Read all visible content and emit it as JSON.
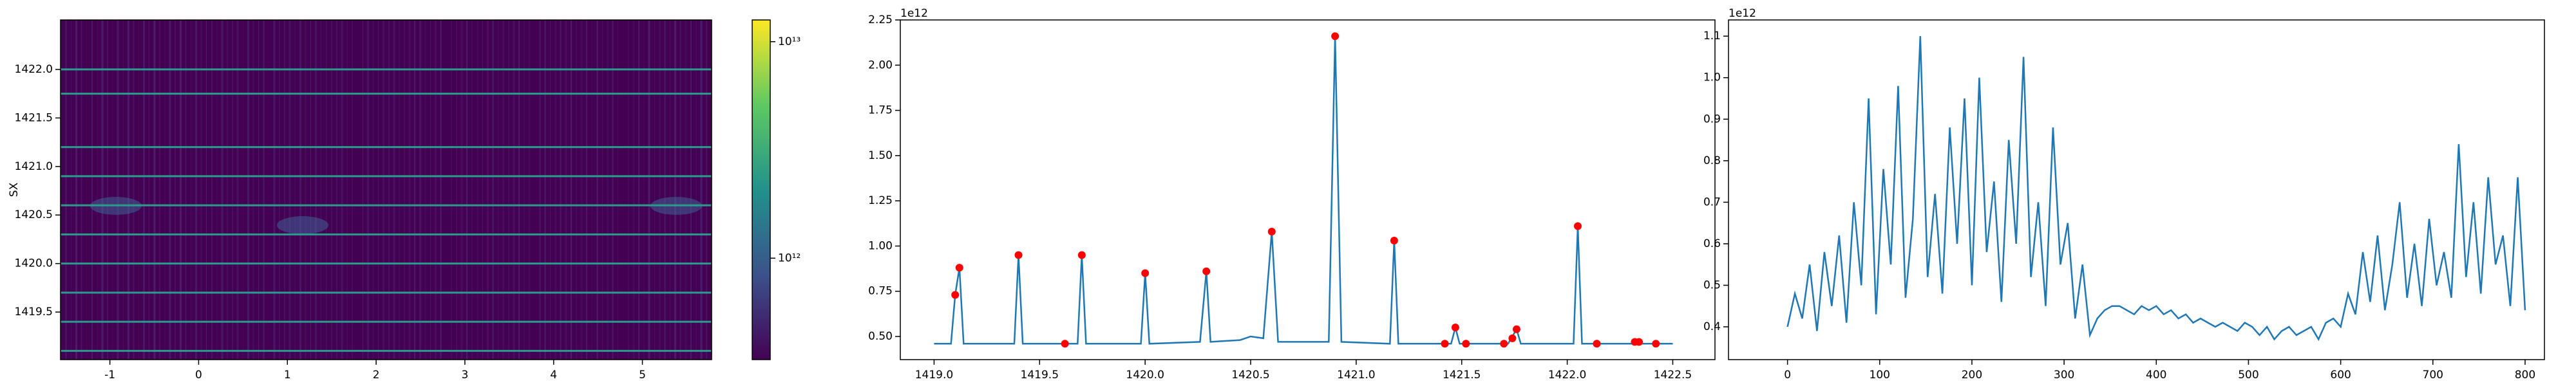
{
  "chart_data": [
    {
      "type": "heatmap",
      "ylabel": "SX",
      "xlim": [
        -1.556,
        5.78
      ],
      "ylim": [
        1419.01,
        1422.51
      ],
      "xticks": [
        -1,
        0,
        1,
        2,
        3,
        4,
        5
      ],
      "yticks": [
        1419.5,
        {
          "value": 1420.0,
          "label": "1420.0"
        },
        1420.5,
        {
          "value": 1421.0,
          "label": "1421.0"
        },
        1421.5,
        {
          "value": 1422.0,
          "label": "1422.0"
        }
      ],
      "background": "#440154",
      "row_color": "#2a9c8b",
      "bright_rows": [
        1419.1,
        1419.4,
        1419.7,
        1420.0,
        1420.3,
        1420.6,
        1420.9,
        1421.2,
        1421.75,
        1422.0
      ],
      "colorbar": {
        "scale": "log",
        "clim": [
          340000000000,
          12600000000000
        ],
        "colors": [
          "#440154",
          "#3b528b",
          "#21918c",
          "#5ec962",
          "#fde725"
        ],
        "ticks": [
          {
            "value": 10000000000000,
            "label": "10¹³"
          },
          {
            "value": 1000000000000,
            "label": "10¹²"
          }
        ]
      }
    },
    {
      "type": "line",
      "offset_text": "1e12",
      "color": "#1f77b4",
      "xlim": [
        1418.84,
        1422.7
      ],
      "ylim": [
        0.372,
        2.25
      ],
      "xticks": [
        {
          "value": 1419.0,
          "label": "1419.0"
        },
        1419.5,
        {
          "value": 1420.0,
          "label": "1420.0"
        },
        1420.5,
        {
          "value": 1421.0,
          "label": "1421.0"
        },
        1421.5,
        {
          "value": 1422.0,
          "label": "1422.0"
        },
        1422.5
      ],
      "yticks": [
        {
          "value": 0.5,
          "label": "0.50"
        },
        0.75,
        {
          "value": 1.0,
          "label": "1.00"
        },
        1.25,
        {
          "value": 1.5,
          "label": "1.50"
        },
        1.75,
        {
          "value": 2.0,
          "label": "2.00"
        },
        2.25
      ],
      "x": [
        1419.0,
        1419.08,
        1419.1,
        1419.12,
        1419.14,
        1419.38,
        1419.4,
        1419.42,
        1419.68,
        1419.7,
        1419.72,
        1419.98,
        1420.0,
        1420.02,
        1420.26,
        1420.29,
        1420.31,
        1420.45,
        1420.5,
        1420.56,
        1420.6,
        1420.63,
        1420.87,
        1420.9,
        1420.93,
        1421.16,
        1421.18,
        1421.2,
        1421.45,
        1421.47,
        1421.49,
        1421.72,
        1421.76,
        1421.78,
        1422.03,
        1422.05,
        1422.07,
        1422.5
      ],
      "values": [
        0.46,
        0.46,
        0.73,
        0.88,
        0.46,
        0.46,
        0.95,
        0.46,
        0.46,
        0.95,
        0.46,
        0.46,
        0.85,
        0.46,
        0.47,
        0.86,
        0.47,
        0.48,
        0.5,
        0.49,
        1.08,
        0.47,
        0.47,
        2.16,
        0.47,
        0.46,
        1.03,
        0.46,
        0.46,
        0.55,
        0.46,
        0.46,
        0.54,
        0.46,
        0.46,
        1.11,
        0.46,
        0.46
      ],
      "peaks": {
        "color": "red",
        "x": [
          1419.1,
          1419.12,
          1419.4,
          1419.62,
          1419.7,
          1420.0,
          1420.29,
          1420.6,
          1420.9,
          1421.18,
          1421.42,
          1421.47,
          1421.52,
          1421.7,
          1421.74,
          1421.76,
          1422.05,
          1422.14,
          1422.32,
          1422.34,
          1422.42
        ],
        "values": [
          0.73,
          0.88,
          0.95,
          0.46,
          0.95,
          0.85,
          0.86,
          1.08,
          2.16,
          1.03,
          0.46,
          0.55,
          0.46,
          0.46,
          0.49,
          0.54,
          1.11,
          0.46,
          0.47,
          0.47,
          0.46
        ]
      }
    },
    {
      "type": "line",
      "offset_text": "1e12",
      "color": "#1f77b4",
      "xlim": [
        -64,
        821
      ],
      "ylim": [
        0.321,
        1.139
      ],
      "xticks": [
        0,
        100,
        200,
        300,
        400,
        500,
        600,
        700,
        800
      ],
      "yticks": [
        0.4,
        0.5,
        0.6,
        0.7,
        0.8,
        0.9,
        {
          "value": 1.0,
          "label": "1.0"
        },
        1.1
      ],
      "x": [
        0,
        8,
        16,
        24,
        32,
        40,
        48,
        56,
        64,
        72,
        80,
        88,
        96,
        104,
        112,
        120,
        128,
        136,
        144,
        152,
        160,
        168,
        176,
        184,
        192,
        200,
        208,
        216,
        224,
        232,
        240,
        248,
        256,
        264,
        272,
        280,
        288,
        296,
        304,
        312,
        320,
        328,
        336,
        344,
        352,
        360,
        368,
        376,
        384,
        392,
        400,
        408,
        416,
        424,
        432,
        440,
        448,
        456,
        464,
        472,
        480,
        488,
        496,
        504,
        512,
        520,
        528,
        536,
        544,
        552,
        560,
        568,
        576,
        584,
        592,
        600,
        608,
        616,
        624,
        632,
        640,
        648,
        656,
        664,
        672,
        680,
        688,
        696,
        704,
        712,
        720,
        728,
        736,
        744,
        752,
        760,
        768,
        776,
        784,
        792,
        800
      ],
      "values": [
        0.4,
        0.48,
        0.42,
        0.55,
        0.39,
        0.58,
        0.45,
        0.62,
        0.41,
        0.7,
        0.5,
        0.95,
        0.43,
        0.78,
        0.55,
        0.98,
        0.47,
        0.66,
        1.1,
        0.52,
        0.72,
        0.48,
        0.88,
        0.6,
        0.95,
        0.5,
        1.0,
        0.58,
        0.75,
        0.46,
        0.85,
        0.6,
        1.05,
        0.52,
        0.7,
        0.45,
        0.88,
        0.55,
        0.65,
        0.42,
        0.55,
        0.38,
        0.42,
        0.44,
        0.45,
        0.45,
        0.44,
        0.43,
        0.45,
        0.44,
        0.45,
        0.43,
        0.44,
        0.42,
        0.43,
        0.41,
        0.42,
        0.41,
        0.4,
        0.41,
        0.4,
        0.39,
        0.41,
        0.4,
        0.38,
        0.4,
        0.37,
        0.39,
        0.4,
        0.38,
        0.39,
        0.4,
        0.37,
        0.41,
        0.42,
        0.4,
        0.48,
        0.43,
        0.58,
        0.46,
        0.62,
        0.44,
        0.55,
        0.7,
        0.47,
        0.6,
        0.45,
        0.66,
        0.5,
        0.58,
        0.47,
        0.84,
        0.52,
        0.7,
        0.48,
        0.76,
        0.55,
        0.62,
        0.45,
        0.76,
        0.44
      ]
    }
  ]
}
